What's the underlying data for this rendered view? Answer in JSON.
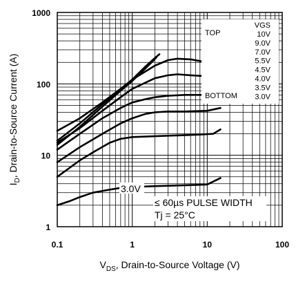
{
  "chart_data": {
    "type": "line",
    "xlabel_main": "V",
    "xlabel_sub": "DS",
    "xlabel_rest": ", Drain-to-Source Voltage (V)",
    "ylabel_main": "I",
    "ylabel_sub": "D",
    "ylabel_rest": ", Drain-to-Source Current (A)",
    "x_scale": "log",
    "y_scale": "log",
    "xlim": [
      0.1,
      100
    ],
    "ylim": [
      1,
      1000
    ],
    "x_tick_labels": [
      "0.1",
      "1",
      "10",
      "100"
    ],
    "y_tick_labels": [
      "1",
      "10",
      "100",
      "1000"
    ],
    "grid": true,
    "legend": {
      "position": "top-right",
      "header": "VGS",
      "top_label": "TOP",
      "bottom_label": "BOTTOM",
      "entries": [
        "10V",
        "9.0V",
        "7.0V",
        "5.5V",
        "4.5V",
        "4.0V",
        "3.5V",
        "3.0V"
      ]
    },
    "annotations": {
      "curve_label": "3.0V",
      "pulse_width": "≤ 60µs PULSE WIDTH",
      "tj": "Tj = 25°C"
    },
    "series": [
      {
        "name": "10V",
        "x": [
          0.1,
          0.2,
          0.4,
          0.7,
          1,
          1.5,
          2,
          2.3
        ],
        "y": [
          16,
          28,
          52,
          85,
          115,
          175,
          230,
          260
        ]
      },
      {
        "name": "9.0V",
        "x": [
          0.1,
          0.2,
          0.4,
          0.7,
          1,
          1.5,
          1.9,
          2.1
        ],
        "y": [
          14,
          25,
          48,
          80,
          110,
          165,
          210,
          235
        ]
      },
      {
        "name": "7.0V",
        "x": [
          0.1,
          0.2,
          0.4,
          0.7,
          1,
          2,
          3,
          4,
          6,
          10
        ],
        "y": [
          22,
          33,
          55,
          85,
          115,
          180,
          215,
          225,
          220,
          200
        ]
      },
      {
        "name": "5.5V",
        "x": [
          0.1,
          0.2,
          0.4,
          0.7,
          1,
          2,
          3,
          4,
          6,
          10
        ],
        "y": [
          15,
          24,
          42,
          65,
          85,
          120,
          132,
          136,
          132,
          128
        ]
      },
      {
        "name": "4.5V",
        "x": [
          0.1,
          0.2,
          0.4,
          0.7,
          1,
          1.5,
          2,
          3,
          5,
          10
        ],
        "y": [
          12,
          20,
          33,
          46,
          55,
          61,
          65,
          68,
          70,
          70
        ]
      },
      {
        "name": "4.0V",
        "x": [
          0.1,
          0.2,
          0.4,
          0.7,
          1,
          1.5,
          2,
          3,
          5,
          10,
          15
        ],
        "y": [
          8,
          13,
          20,
          28,
          33,
          38,
          40,
          41,
          41,
          42,
          46
        ]
      },
      {
        "name": "3.5V",
        "x": [
          0.1,
          0.2,
          0.3,
          0.5,
          0.7,
          1,
          2,
          4,
          8,
          12,
          15
        ],
        "y": [
          5,
          8.5,
          11,
          15,
          17,
          18,
          18.5,
          19,
          19.5,
          20,
          23
        ]
      },
      {
        "name": "3.0V",
        "x": [
          0.1,
          0.15,
          0.2,
          0.3,
          0.5,
          0.7,
          1,
          2,
          5,
          10,
          15
        ],
        "y": [
          2,
          2.3,
          2.6,
          3,
          3.3,
          3.5,
          3.6,
          3.7,
          3.8,
          3.9,
          4.8
        ]
      }
    ]
  }
}
